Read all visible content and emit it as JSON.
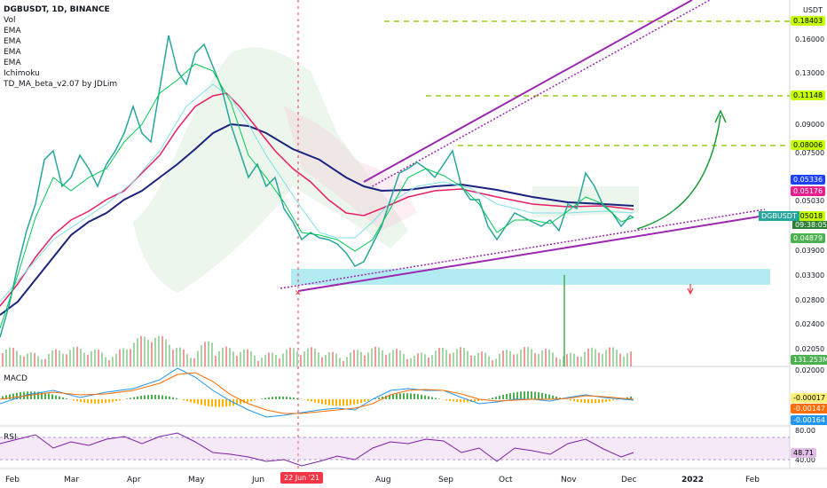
{
  "legend": {
    "title": "DGBUSDT, 1D, BINANCE",
    "indicators": [
      "Vol",
      "EMA",
      "EMA",
      "EMA",
      "EMA",
      "Ichimoku",
      "TD_MA_beta_v2.07 by JDLim"
    ]
  },
  "axis": {
    "currency": "USDT",
    "price_ticks": [
      "0.16000",
      "0.13000",
      "0.09000",
      "0.07500",
      "0.05030",
      "0.03900",
      "0.03300",
      "0.02800",
      "0.02400",
      "0.02050"
    ],
    "macd_ticks": [
      "0.02000"
    ],
    "rsi_ticks": [
      "80.00",
      "40.00"
    ],
    "time_ticks": [
      "Feb",
      "Mar",
      "Apr",
      "May",
      "Jun",
      "Jul",
      "Aug",
      "Sep",
      "Oct",
      "Nov",
      "Dec",
      "2022",
      "Feb"
    ]
  },
  "price_tags": [
    {
      "text": "0.18403",
      "bg": "#c6ff00"
    },
    {
      "text": "0.11148",
      "bg": "#c6ff00"
    },
    {
      "text": "0.08006",
      "bg": "#c6ff00"
    },
    {
      "text": "0.05336",
      "bg": "#1e40ff",
      "fg": "#ffffff"
    },
    {
      "text": "0.05176",
      "bg": "#e91e8c",
      "fg": "#ffffff"
    },
    {
      "text": "0.05018",
      "bg": "#c6ff00"
    },
    {
      "text": "0.04879",
      "bg": "#4caf50",
      "fg": "#ffffff"
    },
    {
      "text": "131.253M",
      "bg": "#4caf50",
      "fg": "#ffffff"
    }
  ],
  "current_time": "09:38:05",
  "symbol_tag": "DGBUSDT",
  "date_marker": "22 Jun '21",
  "macd": {
    "label": "MACD",
    "tags": [
      {
        "text": "-0.00017",
        "bg": "#fff176"
      },
      {
        "text": "-0.00147",
        "bg": "#ff6d00",
        "fg": "#ffffff"
      },
      {
        "text": "-0.00164",
        "bg": "#2196f3",
        "fg": "#ffffff"
      }
    ]
  },
  "rsi": {
    "label": "RSI",
    "tags": [
      {
        "text": "48.71",
        "bg": "#e1bee7"
      }
    ]
  },
  "chart_data": {
    "type": "line",
    "symbol": "DGBUSDT",
    "timeframe": "1D",
    "exchange": "BINANCE",
    "series": [
      {
        "name": "close",
        "x": [
          "2021-02-01",
          "2021-02-15",
          "2021-03-01",
          "2021-03-15",
          "2021-04-01",
          "2021-04-15",
          "2021-05-01",
          "2021-05-10",
          "2021-05-20",
          "2021-06-01",
          "2021-06-15",
          "2021-06-22",
          "2021-07-01",
          "2021-07-15",
          "2021-07-21",
          "2021-08-01",
          "2021-08-15",
          "2021-09-01",
          "2021-09-08",
          "2021-09-20",
          "2021-10-01",
          "2021-10-15",
          "2021-11-01",
          "2021-11-08",
          "2021-11-20",
          "2021-12-01",
          "2021-12-04"
        ],
        "values": [
          0.022,
          0.03,
          0.036,
          0.045,
          0.075,
          0.12,
          0.145,
          0.155,
          0.09,
          0.06,
          0.045,
          0.044,
          0.036,
          0.036,
          0.035,
          0.048,
          0.062,
          0.066,
          0.06,
          0.054,
          0.047,
          0.052,
          0.05,
          0.062,
          0.055,
          0.048,
          0.0502
        ]
      }
    ],
    "levels": [
      0.18403,
      0.11148,
      0.08006
    ],
    "support_zone": [
      0.0322,
      0.0346
    ],
    "ylim": [
      0.0195,
      0.19
    ],
    "log_scale": true,
    "grid": false
  }
}
